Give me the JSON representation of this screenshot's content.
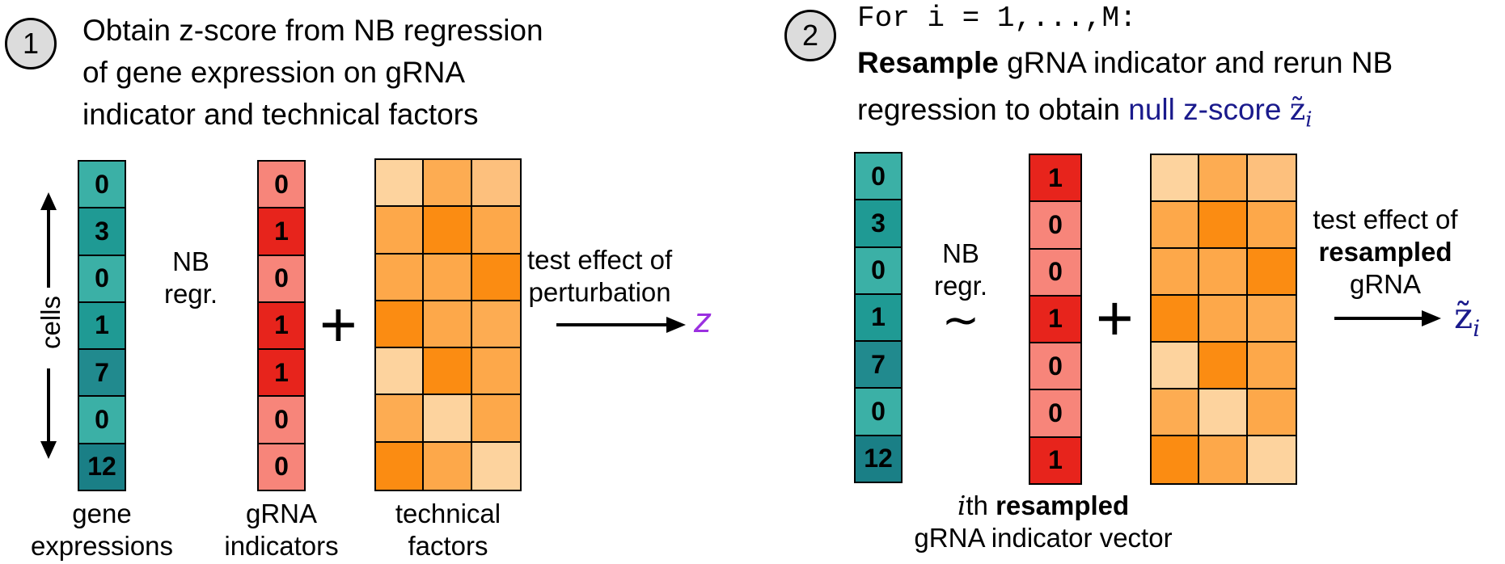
{
  "step1": {
    "number": "1",
    "title_lines": [
      "Obtain z-score from NB regression",
      "of gene expression on gRNA",
      "indicator and technical factors"
    ],
    "cells_label": "cells",
    "gene_expressions": [
      "0",
      "3",
      "0",
      "1",
      "7",
      "0",
      "12"
    ],
    "gene_colors": [
      "#3bb0a6",
      "#1f9a94",
      "#3bb0a6",
      "#1f9a94",
      "#218a8e",
      "#3bb0a6",
      "#1a7f86"
    ],
    "nb_regr_line1": "NB",
    "nb_regr_line2": "regr.",
    "grna_indicators": [
      "0",
      "1",
      "0",
      "1",
      "1",
      "0",
      "0"
    ],
    "grna_colors": [
      "#f7857a",
      "#e7241c",
      "#f7857a",
      "#e7241c",
      "#e7241c",
      "#f7857a",
      "#f7857a"
    ],
    "plus": "+",
    "technical_colors": [
      "#fdd39e",
      "#fdac52",
      "#fdc07d",
      "#fda84a",
      "#fb8c12",
      "#fda84a",
      "#fda84a",
      "#fda84a",
      "#fb8c12",
      "#fb8c12",
      "#fda84a",
      "#fdac52",
      "#fdd39e",
      "#fb8c12",
      "#fda84a",
      "#fdac52",
      "#fdd39e",
      "#fda84a",
      "#fb8c12",
      "#fda84a",
      "#fdd39e"
    ],
    "test_line1": "test effect of",
    "test_line2": "perturbation",
    "z": "z",
    "label_gene_1": "gene",
    "label_gene_2": "expressions",
    "label_grna_1": "gRNA",
    "label_grna_2": "indicators",
    "label_tech_1": "technical",
    "label_tech_2": "factors"
  },
  "step2": {
    "number": "2",
    "for_line": "For i = 1,...,M:",
    "line2_bold": "Resample",
    "line2_rest": " gRNA indicator and rerun NB",
    "line3_plain": "regression to obtain ",
    "line3_blue": "null z-score ",
    "line3_sym": "z̃",
    "line3_sub": "i",
    "gene_expressions": [
      "0",
      "3",
      "0",
      "1",
      "7",
      "0",
      "12"
    ],
    "gene_colors": [
      "#3bb0a6",
      "#1f9a94",
      "#3bb0a6",
      "#1f9a94",
      "#218a8e",
      "#3bb0a6",
      "#1a7f86"
    ],
    "nb_regr_line1": "NB",
    "nb_regr_line2": "regr.",
    "tilde": "∼",
    "grna_indicators": [
      "1",
      "0",
      "0",
      "1",
      "0",
      "0",
      "1"
    ],
    "grna_colors": [
      "#e7241c",
      "#f7857a",
      "#f7857a",
      "#e7241c",
      "#f7857a",
      "#f7857a",
      "#e7241c"
    ],
    "plus": "+",
    "technical_colors": [
      "#fdd39e",
      "#fdac52",
      "#fdc07d",
      "#fda84a",
      "#fb8c12",
      "#fda84a",
      "#fda84a",
      "#fda84a",
      "#fb8c12",
      "#fb8c12",
      "#fda84a",
      "#fdac52",
      "#fdd39e",
      "#fb8c12",
      "#fda84a",
      "#fdac52",
      "#fdd39e",
      "#fda84a",
      "#fb8c12",
      "#fda84a",
      "#fdd39e"
    ],
    "test_line1": "test effect of",
    "test_line2": "resampled",
    "test_line3": "gRNA",
    "z_sym": "z̃",
    "z_sub": "i",
    "bottom_italic": "i",
    "bottom_th": "th ",
    "bottom_bold": "resampled",
    "bottom_line2": "gRNA indicator vector"
  }
}
